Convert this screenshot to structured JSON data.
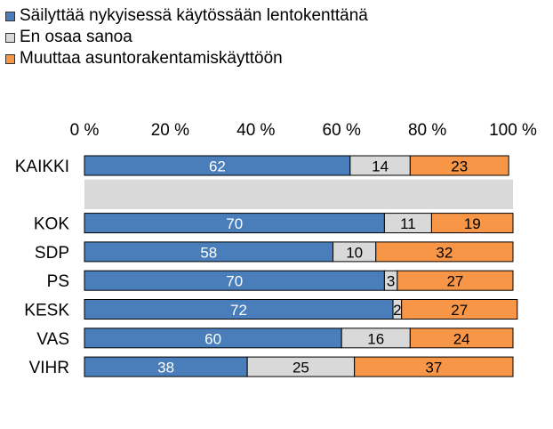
{
  "chart_data": {
    "type": "bar",
    "orientation": "horizontal",
    "stacked": true,
    "percent_axis": true,
    "title": "",
    "xlim": [
      0,
      100
    ],
    "xticks": [
      "0 %",
      "20 %",
      "40 %",
      "60 %",
      "80 %",
      "100 %"
    ],
    "xtick_values": [
      0,
      20,
      40,
      60,
      80,
      100
    ],
    "legend_position": "top-left",
    "categories": [
      "KAIKKI",
      "",
      "KOK",
      "SDP",
      "PS",
      "KESK",
      "VAS",
      "VIHR"
    ],
    "series": [
      {
        "name": "Säilyttää nykyisessä käytössään lentokenttänä",
        "color": "#4a7ebb",
        "label_color": "#ffffff",
        "values": [
          62,
          null,
          70,
          58,
          70,
          72,
          60,
          38
        ]
      },
      {
        "name": "En osaa sanoa",
        "color": "#d9d9d9",
        "label_color": "#000000",
        "values": [
          14,
          null,
          11,
          10,
          3,
          2,
          16,
          25
        ]
      },
      {
        "name": "Muuttaa asuntorakentamiskäyttöön",
        "color": "#f79646",
        "label_color": "#000000",
        "values": [
          23,
          null,
          19,
          32,
          27,
          27,
          24,
          37
        ]
      }
    ],
    "band_color": "#d9d9d9"
  }
}
